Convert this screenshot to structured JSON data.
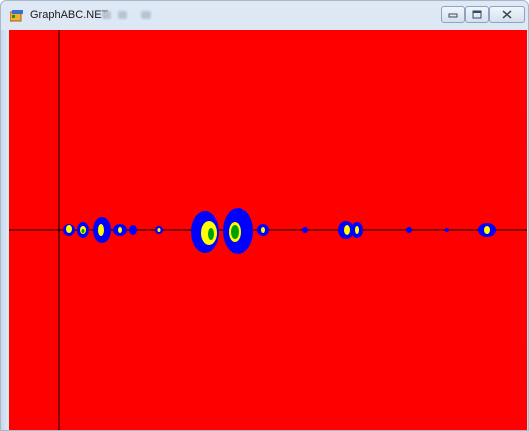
{
  "window": {
    "title": "GraphABC.NET",
    "controls": {
      "minimize": "minimize-icon",
      "maximize": "maximize-icon",
      "close": "close-icon"
    }
  },
  "canvas": {
    "background_color": "#ff0000",
    "axis_color": "#000000",
    "palette": [
      "#0000ff",
      "#ffff00",
      "#00a000",
      "#ff0000"
    ]
  }
}
